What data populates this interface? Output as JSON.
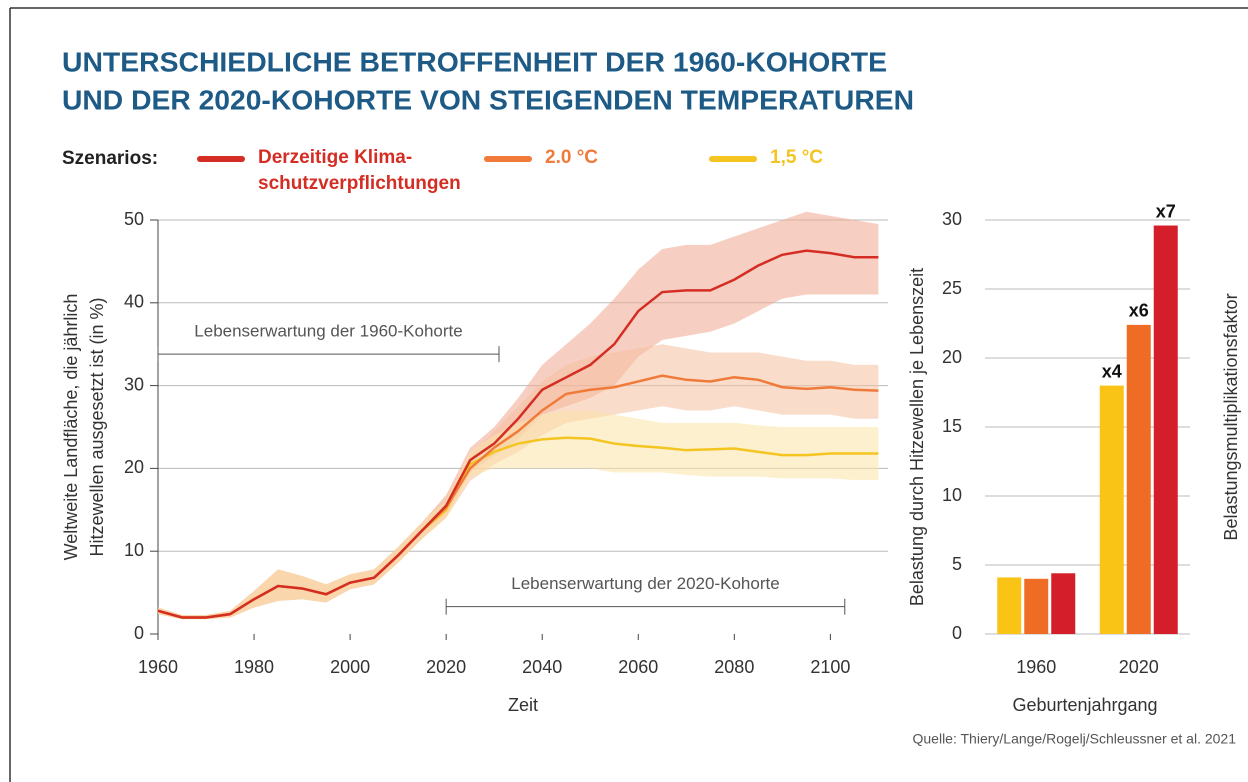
{
  "title": [
    "UNTERSCHIEDLICHE BETROFFENHEIT DER 1960-KOHORTE",
    "UND DER 2020-KOHORTE VON STEIGENDEN TEMPERATUREN"
  ],
  "legend_title": "Szenarios:",
  "source": "Quelle: Thiery/Lange/Rogelj/Schleussner et al. 2021",
  "chart_data": [
    {
      "type": "line",
      "xlabel": "Zeit",
      "ylabel": [
        "Weltweite Landfläche, die jährlich",
        "Hitzewellen ausgesetzt ist (in %)"
      ],
      "xlim": [
        1960,
        2112
      ],
      "xticks": [
        1960,
        1980,
        2000,
        2020,
        2040,
        2060,
        2080,
        2100
      ],
      "ylim": [
        0,
        50
      ],
      "yticks": [
        0,
        10,
        20,
        30,
        40,
        50
      ],
      "grid": true,
      "x": [
        1960,
        1965,
        1970,
        1975,
        1980,
        1985,
        1990,
        1995,
        2000,
        2005,
        2010,
        2015,
        2020,
        2025,
        2030,
        2035,
        2040,
        2045,
        2050,
        2055,
        2060,
        2065,
        2070,
        2075,
        2080,
        2085,
        2090,
        2095,
        2100,
        2105,
        2110
      ],
      "series": [
        {
          "name": "Derzeitige Klima-\nschutzverpflichtungen",
          "color": "#d42e24",
          "band_color": "#f0a890",
          "values": [
            2.8,
            2.0,
            2.0,
            2.4,
            4.2,
            5.8,
            5.5,
            4.8,
            6.2,
            6.8,
            9.5,
            12.5,
            15.5,
            21,
            23,
            26,
            29.5,
            31,
            32.5,
            35,
            39,
            41.3,
            41.5,
            41.5,
            42.8,
            44.5,
            45.8,
            46.3,
            46,
            45.5,
            45.5
          ],
          "lower": [
            2.4,
            1.8,
            1.8,
            2.0,
            3.2,
            4.0,
            4.2,
            3.8,
            5.4,
            6.0,
            8.6,
            11.5,
            14.2,
            19.5,
            21.5,
            23.5,
            26.5,
            27.5,
            28.5,
            30,
            33.5,
            35.5,
            36,
            36.5,
            37.5,
            39,
            40.5,
            41,
            41,
            41,
            41
          ],
          "upper": [
            3.2,
            2.3,
            2.3,
            2.8,
            5.2,
            7.8,
            7.0,
            6.0,
            7.2,
            7.8,
            10.5,
            13.5,
            16.8,
            22.5,
            25,
            28.5,
            32.5,
            35,
            37.5,
            40.5,
            44,
            46.5,
            47,
            47,
            48,
            49,
            50,
            51,
            50.5,
            50,
            49.5
          ]
        },
        {
          "name": "2.0 °C",
          "color": "#f07a3a",
          "band_color": "#f6c0a0",
          "values": [
            2.8,
            2.0,
            2.0,
            2.4,
            4.2,
            5.8,
            5.5,
            4.8,
            6.2,
            6.8,
            9.5,
            12.5,
            15.3,
            20,
            22.5,
            24.5,
            27,
            29,
            29.5,
            29.8,
            30.5,
            31.2,
            30.7,
            30.5,
            31,
            30.7,
            29.8,
            29.6,
            29.8,
            29.5,
            29.4
          ],
          "lower": [
            2.4,
            1.8,
            1.8,
            2.0,
            3.2,
            4.0,
            4.2,
            3.8,
            5.4,
            6.0,
            8.6,
            11.5,
            14,
            18.5,
            20.5,
            22,
            24,
            25.5,
            26,
            26.5,
            27,
            27.5,
            27,
            27,
            27.5,
            27,
            26.5,
            26.5,
            26.5,
            26,
            26
          ],
          "upper": [
            3.2,
            2.3,
            2.3,
            2.8,
            5.2,
            7.8,
            7.0,
            6.0,
            7.2,
            7.8,
            10.5,
            13.5,
            16.5,
            21.5,
            24.5,
            27.5,
            30.5,
            32.5,
            33.5,
            34,
            34.5,
            35,
            34.5,
            34,
            34,
            34,
            33.5,
            33,
            33,
            32.5,
            32.5
          ]
        },
        {
          "name": "1,5 °C",
          "color": "#f4c420",
          "band_color": "#fbe3a8",
          "values": [
            2.8,
            2.0,
            2.0,
            2.4,
            4.2,
            5.8,
            5.5,
            4.8,
            6.2,
            6.8,
            9.5,
            12.5,
            15,
            20.5,
            22,
            23,
            23.5,
            23.7,
            23.6,
            23,
            22.7,
            22.5,
            22.2,
            22.3,
            22.4,
            22,
            21.6,
            21.6,
            21.8,
            21.8,
            21.8
          ],
          "lower": [
            2.4,
            1.8,
            1.8,
            2.0,
            3.2,
            4.0,
            4.2,
            3.8,
            5.4,
            6.0,
            8.6,
            11.5,
            14,
            19,
            20,
            20,
            20,
            20,
            20,
            19.5,
            19.5,
            19.5,
            19.2,
            19,
            19,
            19,
            18.8,
            18.8,
            18.8,
            18.6,
            18.6
          ],
          "upper": [
            3.2,
            2.3,
            2.3,
            2.8,
            5.2,
            7.8,
            7.0,
            6.0,
            7.2,
            7.8,
            10.5,
            13.5,
            16.2,
            22,
            24,
            25.5,
            26.5,
            27,
            27,
            26.5,
            26,
            25.5,
            25.5,
            25.5,
            25.5,
            25.2,
            25,
            25,
            25,
            25,
            25
          ]
        }
      ],
      "annotations": [
        {
          "text": "Lebenserwartung der 1960-Kohorte",
          "x_start": 1960,
          "x_end": 2031,
          "y": 33.8
        },
        {
          "text": "Lebenserwartung der 2020-Kohorte",
          "x_start": 2020,
          "x_end": 2103,
          "y": 3.3
        }
      ]
    },
    {
      "type": "bar",
      "xlabel": "Geburtenjahrgang",
      "ylabel": "Belastung durch Hitzewellen je Lebenszeit",
      "y2label": "Belastungsmultiplikationsfaktor",
      "categories": [
        "1960",
        "2020"
      ],
      "ylim": [
        0,
        30
      ],
      "yticks": [
        0,
        5,
        10,
        15,
        20,
        25,
        30
      ],
      "grid": true,
      "series": [
        {
          "color": "#f9c416",
          "values": [
            4.1,
            18.0
          ],
          "multiplier_labels": [
            null,
            "x4"
          ]
        },
        {
          "color": "#ef6c25",
          "values": [
            4.0,
            22.4
          ],
          "multiplier_labels": [
            null,
            "x6"
          ]
        },
        {
          "color": "#d41f2a",
          "values": [
            4.4,
            29.6
          ],
          "multiplier_labels": [
            null,
            "x7"
          ]
        }
      ]
    }
  ]
}
